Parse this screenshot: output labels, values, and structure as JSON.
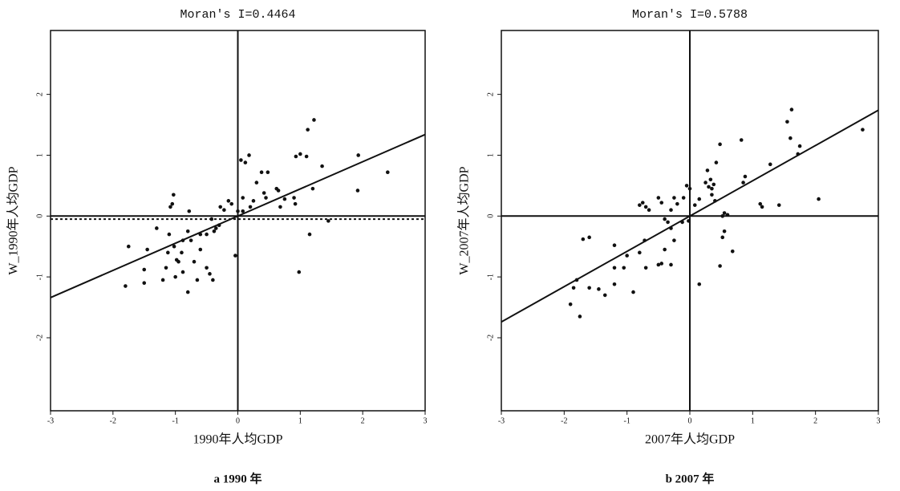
{
  "chart_data": [
    {
      "type": "scatter",
      "title": "Moran's I=0.4464",
      "xlabel": "1990年人均GDP",
      "ylabel": "W_1990年人均GDP",
      "caption": "a 1990 年",
      "x": [
        1.22,
        1.12,
        0.93,
        1.0,
        1.1,
        1.35,
        1.93,
        2.4,
        1.92,
        1.2,
        1.15,
        0.98,
        1.45,
        0.05,
        0.12,
        0.18,
        0.3,
        0.38,
        0.48,
        0.42,
        0.45,
        0.62,
        0.65,
        0.75,
        0.9,
        0.92,
        0.68,
        0.08,
        0.0,
        -0.04,
        -0.1,
        -0.15,
        -0.28,
        -0.3,
        -0.35,
        -0.38,
        -0.42,
        -0.5,
        -0.6,
        -0.78,
        -0.6,
        -0.75,
        -0.8,
        -0.88,
        -0.9,
        -0.95,
        -0.98,
        -1.02,
        -1.05,
        -1.03,
        -1.08,
        -1.1,
        -1.12,
        -1.15,
        -1.2,
        -1.3,
        -1.45,
        -1.5,
        -1.5,
        -1.75,
        -1.8,
        -0.8,
        -0.65,
        -0.5,
        -0.45,
        -0.4,
        -0.88,
        -1.0,
        -0.7,
        0.08,
        0.25,
        0.2,
        -0.22
      ],
      "y": [
        1.58,
        1.42,
        0.98,
        1.02,
        0.98,
        0.82,
        1.0,
        0.72,
        0.42,
        0.45,
        -0.3,
        -0.92,
        -0.08,
        0.92,
        0.88,
        1.0,
        0.55,
        0.72,
        0.72,
        0.38,
        0.3,
        0.45,
        0.42,
        0.28,
        0.3,
        0.2,
        0.15,
        0.08,
        0.08,
        -0.65,
        0.2,
        0.25,
        0.15,
        -0.15,
        -0.2,
        -0.25,
        -0.05,
        -0.3,
        -0.55,
        0.08,
        -0.3,
        -0.4,
        -0.25,
        -0.4,
        -0.6,
        -0.75,
        -0.72,
        -0.5,
        0.2,
        0.35,
        0.15,
        -0.3,
        -0.6,
        -0.85,
        -1.05,
        -0.2,
        -0.55,
        -0.88,
        -1.1,
        -0.5,
        -1.15,
        -1.25,
        -1.05,
        -0.85,
        -0.95,
        -1.05,
        -0.92,
        -1.0,
        -0.75,
        0.3,
        0.25,
        0.15,
        0.1
      ],
      "color": "#111111",
      "fit_line": {
        "x": [
          -3,
          3
        ],
        "y": [
          -1.34,
          1.34
        ]
      },
      "dashed_line": {
        "x": [
          -3,
          3
        ],
        "y": [
          -0.05,
          -0.05
        ]
      },
      "xlim": [
        -3,
        3
      ],
      "ylim": [
        -3.2,
        3.05
      ],
      "xticks": [
        -3,
        -2,
        -1,
        0,
        1,
        2,
        3
      ],
      "yticks": [
        -2,
        -1,
        0,
        1,
        2
      ]
    },
    {
      "type": "scatter",
      "title": "Moran's I=0.5788",
      "xlabel": "2007年人均GDP",
      "ylabel": "W_2007年人均GDP",
      "caption": "b 2007 年",
      "x": [
        1.62,
        1.55,
        1.6,
        1.72,
        1.75,
        2.75,
        2.05,
        1.28,
        0.82,
        0.88,
        0.85,
        1.12,
        1.15,
        1.42,
        0.48,
        0.42,
        0.28,
        0.33,
        0.38,
        0.3,
        0.25,
        0.35,
        0.35,
        0.4,
        0.15,
        0.08,
        -0.05,
        0.0,
        -0.1,
        0.52,
        0.55,
        0.6,
        0.68,
        0.55,
        0.52,
        0.48,
        0.15,
        -0.02,
        -0.12,
        -0.2,
        -0.25,
        -0.3,
        -0.3,
        -0.35,
        -0.4,
        -0.45,
        -0.5,
        -0.25,
        -0.4,
        -0.45,
        -0.5,
        -0.3,
        -0.65,
        -0.7,
        -0.75,
        -0.8,
        -0.72,
        -0.8,
        -0.7,
        -1.0,
        -1.05,
        -0.9,
        -1.2,
        -1.2,
        -1.35,
        -1.45,
        -1.6,
        -1.7,
        -1.6,
        -1.8,
        -1.85,
        -1.9,
        -1.75,
        -1.2
      ],
      "y": [
        1.75,
        1.55,
        1.28,
        1.02,
        1.15,
        1.42,
        0.28,
        0.85,
        1.25,
        0.65,
        0.55,
        0.2,
        0.15,
        0.18,
        1.18,
        0.88,
        0.75,
        0.6,
        0.52,
        0.48,
        0.55,
        0.45,
        0.35,
        0.25,
        0.28,
        0.18,
        0.5,
        0.45,
        0.3,
        0.0,
        0.05,
        0.02,
        -0.58,
        -0.25,
        -0.35,
        -0.82,
        -1.12,
        -0.08,
        -0.1,
        0.2,
        0.3,
        0.1,
        -0.2,
        -0.1,
        -0.05,
        0.22,
        0.3,
        -0.4,
        -0.55,
        -0.78,
        -0.8,
        -0.8,
        0.1,
        0.15,
        0.22,
        0.18,
        -0.4,
        -0.6,
        -0.85,
        -0.65,
        -0.85,
        -1.25,
        -0.48,
        -1.12,
        -1.3,
        -1.2,
        -0.35,
        -0.38,
        -1.18,
        -1.05,
        -1.18,
        -1.45,
        -1.65,
        -0.85
      ],
      "color": "#111111",
      "fit_line": {
        "x": [
          -3,
          3
        ],
        "y": [
          -1.74,
          1.74
        ]
      },
      "xlim": [
        -3,
        3
      ],
      "ylim": [
        -3.2,
        3.05
      ],
      "xticks": [
        -3,
        -2,
        -1,
        0,
        1,
        2,
        3
      ],
      "yticks": [
        -2,
        -1,
        0,
        1,
        2
      ]
    }
  ]
}
